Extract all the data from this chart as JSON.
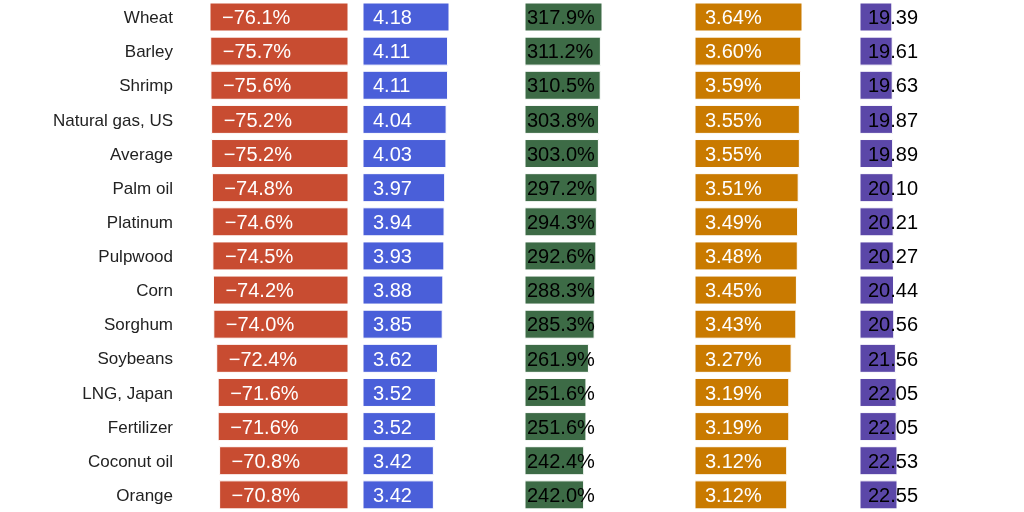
{
  "chart_data": [
    {
      "type": "bar",
      "orientation": "horizontal",
      "tick_labels": "y",
      "categories": [
        "Wheat",
        "Barley",
        "Shrimp",
        "Natural gas, US",
        "Average",
        "Palm oil",
        "Platinum",
        "Pulpwood",
        "Corn",
        "Sorghum",
        "Soybeans",
        "LNG, Japan",
        "Fertilizer",
        "Coconut oil",
        "Orange"
      ],
      "color": "#c84c31",
      "values": [
        -76.1,
        -75.7,
        -75.6,
        -75.2,
        -75.2,
        -74.8,
        -74.6,
        -74.5,
        -74.2,
        -74.0,
        -72.4,
        -71.6,
        -71.6,
        -70.8,
        -70.8
      ],
      "value_labels": [
        "−76.1%",
        "−75.7%",
        "−75.6%",
        "−75.2%",
        "−75.2%",
        "−74.8%",
        "−74.6%",
        "−74.5%",
        "−74.2%",
        "−74.0%",
        "−72.4%",
        "−71.6%",
        "−71.6%",
        "−70.8%",
        "−70.8%"
      ]
    },
    {
      "type": "bar",
      "orientation": "horizontal",
      "tick_labels": false,
      "color": "#4a5fd9",
      "values": [
        4.18,
        4.11,
        4.11,
        4.04,
        4.03,
        3.97,
        3.94,
        3.93,
        3.88,
        3.85,
        3.62,
        3.52,
        3.52,
        3.42,
        3.42
      ],
      "value_labels": [
        "4.18",
        "4.11",
        "4.11",
        "4.04",
        "4.03",
        "3.97",
        "3.94",
        "3.93",
        "3.88",
        "3.85",
        "3.62",
        "3.52",
        "3.52",
        "3.42",
        "3.42"
      ]
    },
    {
      "type": "bar",
      "orientation": "horizontal",
      "tick_labels": false,
      "color": "#3d6b46",
      "values": [
        317.9,
        311.2,
        310.5,
        303.8,
        303.0,
        297.2,
        294.3,
        292.6,
        288.3,
        285.3,
        261.9,
        251.6,
        251.6,
        242.4,
        242.0
      ],
      "value_labels": [
        "317.9%",
        "311.2%",
        "310.5%",
        "303.8%",
        "303.0%",
        "297.2%",
        "294.3%",
        "292.6%",
        "288.3%",
        "285.3%",
        "261.9%",
        "251.6%",
        "251.6%",
        "242.4%",
        "242.0%"
      ]
    },
    {
      "type": "bar",
      "orientation": "horizontal",
      "tick_labels": false,
      "color": "#c97a00",
      "values": [
        3.64,
        3.6,
        3.59,
        3.55,
        3.55,
        3.51,
        3.49,
        3.48,
        3.45,
        3.43,
        3.27,
        3.19,
        3.19,
        3.12,
        3.12
      ],
      "value_labels": [
        "3.64%",
        "3.60%",
        "3.59%",
        "3.55%",
        "3.55%",
        "3.51%",
        "3.49%",
        "3.48%",
        "3.45%",
        "3.43%",
        "3.27%",
        "3.19%",
        "3.19%",
        "3.12%",
        "3.12%"
      ]
    },
    {
      "type": "bar",
      "orientation": "horizontal",
      "tick_labels": false,
      "color": "#5b47a8",
      "values": [
        19.39,
        19.61,
        19.63,
        19.87,
        19.89,
        20.1,
        20.21,
        20.27,
        20.44,
        20.56,
        21.56,
        22.05,
        22.05,
        22.53,
        22.55
      ],
      "value_labels": [
        "19.39",
        "19.61",
        "19.63",
        "19.87",
        "19.89",
        "20.10",
        "20.21",
        "20.27",
        "20.44",
        "20.56",
        "21.56",
        "22.05",
        "22.05",
        "22.53",
        "22.55"
      ]
    }
  ]
}
